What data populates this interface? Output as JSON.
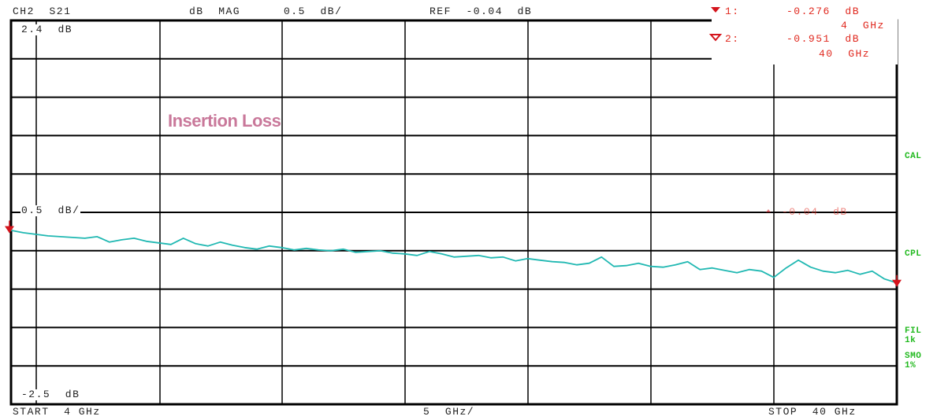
{
  "header": {
    "channel": "CH2  S21",
    "format": "dB  MAG",
    "scale": "0.5  dB/",
    "ref": "REF  -0.04  dB"
  },
  "markers": [
    {
      "label": "1:",
      "value": "-0.276  dB",
      "freq": "4  GHz"
    },
    {
      "label": "2:",
      "value": "-0.951  dB",
      "freq": "40  GHz"
    }
  ],
  "top_level_label": "2.4  dB",
  "ref_level_label": "0.5  dB/",
  "ref_line_label": "-0.04  dB",
  "bottom_level_label": "-2.5  dB",
  "footer": {
    "start": "START  4 GHz",
    "span_per_div": "5  GHz/",
    "stop": "STOP  40 GHz"
  },
  "side_labels": {
    "cal": "CAL",
    "cpl": "CPL",
    "fil": "FIL",
    "fil_value": "1k",
    "smo": "SMO",
    "smo_value": "1%"
  },
  "colors": {
    "trace": "#20b8b2",
    "grid": "#000000",
    "marker": "#d4141c",
    "annotation": "#c9789a",
    "status": "#21b91e"
  },
  "chart_data": {
    "type": "line",
    "title": "Insertion Loss",
    "xlabel": "",
    "ylabel": "",
    "x_unit": "GHz",
    "y_unit": "dB",
    "xlim": [
      4,
      40
    ],
    "ylim": [
      -2.5,
      2.4
    ],
    "reference_value": -0.04,
    "grid": true,
    "x_ticks": [
      "START 4 GHz",
      "5 GHz/",
      "STOP 40 GHz"
    ],
    "series": [
      {
        "x": [
          4,
          4.5,
          5,
          5.5,
          6,
          6.5,
          7,
          7.5,
          8,
          8.5,
          9,
          9.5,
          10,
          10.5,
          11,
          11.5,
          12,
          12.5,
          13,
          13.5,
          14,
          14.5,
          15,
          15.5,
          16,
          16.5,
          17,
          17.5,
          18,
          18.5,
          19,
          19.5,
          20,
          20.5,
          21,
          21.5,
          22,
          22.5,
          23,
          23.5,
          24,
          24.5,
          25,
          25.5,
          26,
          26.5,
          27,
          27.5,
          28,
          28.5,
          29,
          29.5,
          30,
          30.5,
          31,
          31.5,
          32,
          32.5,
          33,
          33.5,
          34,
          34.5,
          35,
          35.5,
          36,
          36.5,
          37,
          37.5,
          38,
          38.5,
          39,
          39.5,
          40
        ],
        "y": [
          -0.28,
          -0.31,
          -0.33,
          -0.35,
          -0.36,
          -0.37,
          -0.38,
          -0.36,
          -0.43,
          -0.4,
          -0.38,
          -0.42,
          -0.44,
          -0.46,
          -0.38,
          -0.45,
          -0.48,
          -0.43,
          -0.47,
          -0.5,
          -0.52,
          -0.48,
          -0.5,
          -0.53,
          -0.51,
          -0.53,
          -0.54,
          -0.52,
          -0.56,
          -0.55,
          -0.54,
          -0.57,
          -0.58,
          -0.6,
          -0.55,
          -0.58,
          -0.62,
          -0.61,
          -0.6,
          -0.63,
          -0.62,
          -0.67,
          -0.64,
          -0.66,
          -0.68,
          -0.69,
          -0.72,
          -0.7,
          -0.62,
          -0.74,
          -0.73,
          -0.7,
          -0.74,
          -0.75,
          -0.72,
          -0.68,
          -0.78,
          -0.76,
          -0.79,
          -0.82,
          -0.78,
          -0.8,
          -0.88,
          -0.76,
          -0.66,
          -0.75,
          -0.8,
          -0.82,
          -0.79,
          -0.84,
          -0.8,
          -0.9,
          -0.95
        ]
      }
    ],
    "markers": [
      {
        "id": "1",
        "x": 4,
        "y": -0.276
      },
      {
        "id": "2",
        "x": 40,
        "y": -0.951
      }
    ]
  }
}
